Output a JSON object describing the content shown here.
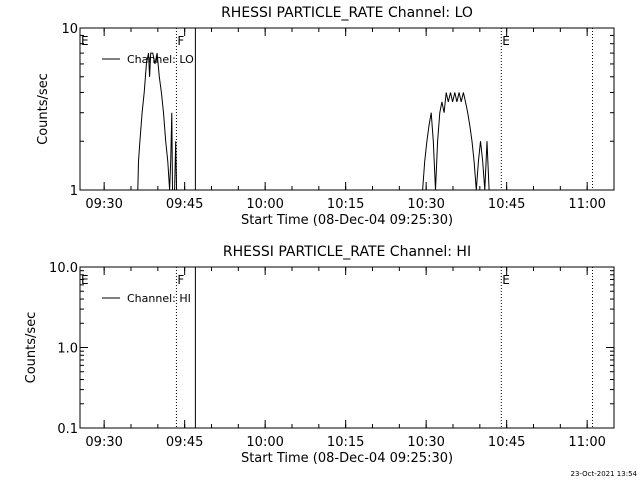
{
  "chart_data": [
    {
      "type": "line",
      "title": "RHESSI PARTICLE_RATE Channel: LO",
      "xlabel": "Start Time (08-Dec-04 09:25:30)",
      "ylabel": "Counts/sec",
      "yscale": "log",
      "ylim": [
        1,
        10
      ],
      "xlim": [
        "09:25:30",
        "11:05:00"
      ],
      "y_tick_labels": [
        "1",
        "10"
      ],
      "x_tick_labels": [
        "09:30",
        "09:45",
        "10:00",
        "10:15",
        "10:30",
        "10:45",
        "11:00"
      ],
      "legend": "top-left",
      "series": [
        {
          "name": "Channel: LO",
          "points": [
            [
              "09:36:16",
              1
            ],
            [
              "09:36:24",
              1.5
            ],
            [
              "09:36:40",
              2
            ],
            [
              "09:37:04",
              3
            ],
            [
              "09:37:28",
              4
            ],
            [
              "09:37:52",
              6
            ],
            [
              "09:38:16",
              7
            ],
            [
              "09:38:28",
              5
            ],
            [
              "09:38:40",
              7
            ],
            [
              "09:39:04",
              7
            ],
            [
              "09:39:28",
              6
            ],
            [
              "09:39:52",
              7
            ],
            [
              "09:40:16",
              5
            ],
            [
              "09:40:40",
              4
            ],
            [
              "09:41:04",
              3
            ],
            [
              "09:41:28",
              2
            ],
            [
              "09:41:52",
              1.5
            ],
            [
              "09:42:12",
              1
            ],
            [
              "09:42:24",
              1.5
            ],
            [
              "09:42:36",
              3
            ],
            [
              "09:42:44",
              1
            ],
            [
              "09:43:08",
              1
            ],
            [
              "09:43:20",
              2
            ],
            [
              "09:43:30",
              1
            ],
            [
              "10:29:20",
              1
            ],
            [
              "10:29:44",
              1.5
            ],
            [
              "10:30:08",
              2
            ],
            [
              "10:30:32",
              2.5
            ],
            [
              "10:30:56",
              3
            ],
            [
              "10:31:20",
              2
            ],
            [
              "10:31:44",
              1
            ],
            [
              "10:32:08",
              2
            ],
            [
              "10:32:32",
              3
            ],
            [
              "10:32:56",
              3.5
            ],
            [
              "10:33:20",
              3
            ],
            [
              "10:33:44",
              4
            ],
            [
              "10:34:08",
              3.5
            ],
            [
              "10:34:32",
              4
            ],
            [
              "10:34:56",
              3.5
            ],
            [
              "10:35:20",
              4
            ],
            [
              "10:35:44",
              3.5
            ],
            [
              "10:36:08",
              4
            ],
            [
              "10:36:32",
              3.5
            ],
            [
              "10:36:56",
              4
            ],
            [
              "10:37:20",
              3.5
            ],
            [
              "10:37:44",
              3
            ],
            [
              "10:38:08",
              2.5
            ],
            [
              "10:38:32",
              2
            ],
            [
              "10:38:56",
              1.5
            ],
            [
              "10:39:20",
              1
            ],
            [
              "10:39:44",
              1.5
            ],
            [
              "10:40:08",
              2
            ],
            [
              "10:40:32",
              1.5
            ],
            [
              "10:40:56",
              1
            ],
            [
              "10:41:20",
              2
            ],
            [
              "10:41:44",
              1
            ]
          ]
        }
      ],
      "markers": [
        {
          "label": "E",
          "time": "09:25:30",
          "style": "none"
        },
        {
          "label": "F",
          "time": "09:43:28",
          "style": "dotted"
        },
        {
          "label": "",
          "time": "09:47:00",
          "style": "solid"
        },
        {
          "label": "E",
          "time": "10:44:00",
          "style": "dotted"
        },
        {
          "label": "",
          "time": "11:01:00",
          "style": "dotted"
        }
      ]
    },
    {
      "type": "line",
      "title": "RHESSI PARTICLE_RATE Channel: HI",
      "xlabel": "Start Time (08-Dec-04 09:25:30)",
      "ylabel": "Counts/sec",
      "yscale": "log",
      "ylim": [
        0.1,
        10
      ],
      "xlim": [
        "09:25:30",
        "11:05:00"
      ],
      "y_tick_labels": [
        "0.1",
        "1.0",
        "10.0"
      ],
      "x_tick_labels": [
        "09:30",
        "09:45",
        "10:00",
        "10:15",
        "10:30",
        "10:45",
        "11:00"
      ],
      "legend": "top-left",
      "series": [
        {
          "name": "Channel: HI",
          "points": []
        }
      ],
      "markers": [
        {
          "label": "E",
          "time": "09:25:30",
          "style": "none"
        },
        {
          "label": "F",
          "time": "09:43:28",
          "style": "dotted"
        },
        {
          "label": "",
          "time": "09:47:00",
          "style": "solid"
        },
        {
          "label": "E",
          "time": "10:44:00",
          "style": "dotted"
        },
        {
          "label": "",
          "time": "11:01:00",
          "style": "dotted"
        }
      ]
    }
  ],
  "footer": {
    "timestamp": "23-Oct-2021 13:54"
  }
}
